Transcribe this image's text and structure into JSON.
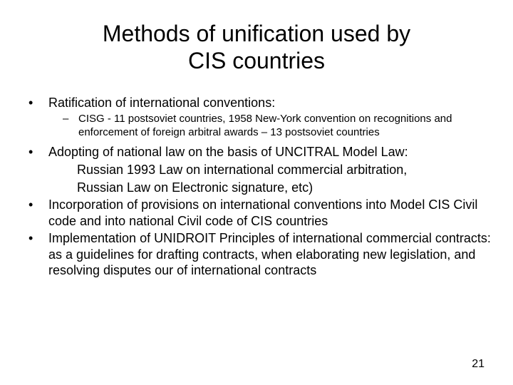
{
  "title_line1": "Methods of unification used by",
  "title_line2": "CIS countries",
  "bullets": {
    "b1": "Ratification of international conventions:",
    "b1_sub": "CISG - 11 postsoviet countries, 1958 New-York convention on recognitions and enforcement of foreign arbitral awards – 13 postsoviet countries",
    "b2": "Adopting of national law on the basis of UNCITRAL Model Law:",
    "b2_cont1": "Russian 1993 Law on international commercial arbitration,",
    "b2_cont2": "Russian Law on Electronic signature, etc)",
    "b3": "Incorporation of provisions on international conventions into Model CIS Civil code and into national Civil code of CIS countries",
    "b4": "Implementation of UNIDROIT Principles of international commercial contracts: as a guidelines for drafting contracts, when elaborating new legislation, and resolving disputes our of international contracts"
  },
  "markers": {
    "bullet": "•",
    "dash": "–"
  },
  "page_number": "21",
  "colors": {
    "background": "#ffffff",
    "text": "#000000"
  },
  "fonts": {
    "title_size": 32,
    "body_size": 18,
    "sub_size": 15,
    "pagenum_size": 16
  }
}
